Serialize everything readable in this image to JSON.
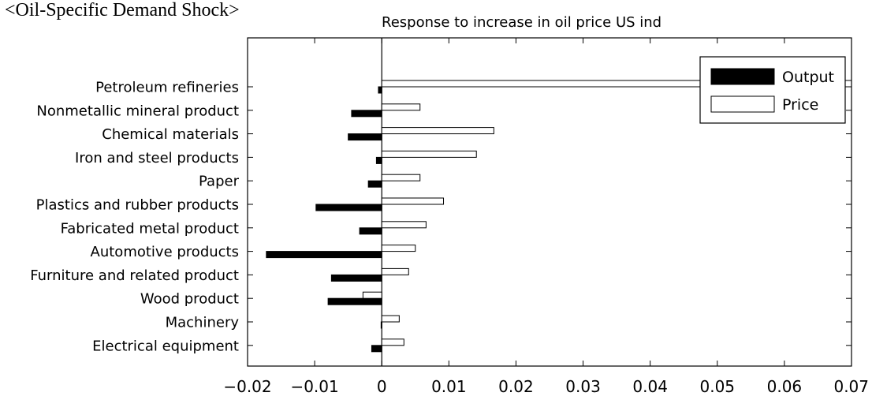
{
  "header": {
    "title": "<Oil-Specific Demand Shock>"
  },
  "chart_data": {
    "type": "bar",
    "orientation": "horizontal",
    "title": "Response to increase in oil price US ind",
    "xlabel": "",
    "ylabel": "",
    "xlim": [
      -0.02,
      0.07
    ],
    "xticks": [
      -0.02,
      -0.01,
      0,
      0.01,
      0.02,
      0.03,
      0.04,
      0.05,
      0.06,
      0.07
    ],
    "xtick_labels": [
      "−0.02",
      "−0.01",
      "0",
      "0.01",
      "0.02",
      "0.03",
      "0.04",
      "0.05",
      "0.06",
      "0.07"
    ],
    "grid": false,
    "legend_position": "top-right",
    "categories": [
      "Petroleum refineries",
      "Nonmetallic mineral product",
      "Chemical materials",
      "Iron and steel products",
      "Paper",
      "Plastics and rubber products",
      "Fabricated metal product",
      "Automotive products",
      "Furniture and related product",
      "Wood product",
      "Machinery",
      "Electrical equipment"
    ],
    "series": [
      {
        "name": "Output",
        "color": "#000000",
        "fill": "#000000",
        "values": [
          -0.0005,
          -0.0045,
          -0.005,
          -0.0008,
          -0.002,
          -0.0098,
          -0.0033,
          -0.0172,
          -0.0075,
          -0.008,
          -0.0001,
          -0.0015
        ]
      },
      {
        "name": "Price",
        "color": "#000000",
        "fill": "#ffffff",
        "values": [
          0.072,
          0.0057,
          0.0167,
          0.0141,
          0.0057,
          0.0092,
          0.0066,
          0.005,
          0.004,
          -0.0028,
          0.0026,
          0.0033
        ]
      }
    ]
  }
}
